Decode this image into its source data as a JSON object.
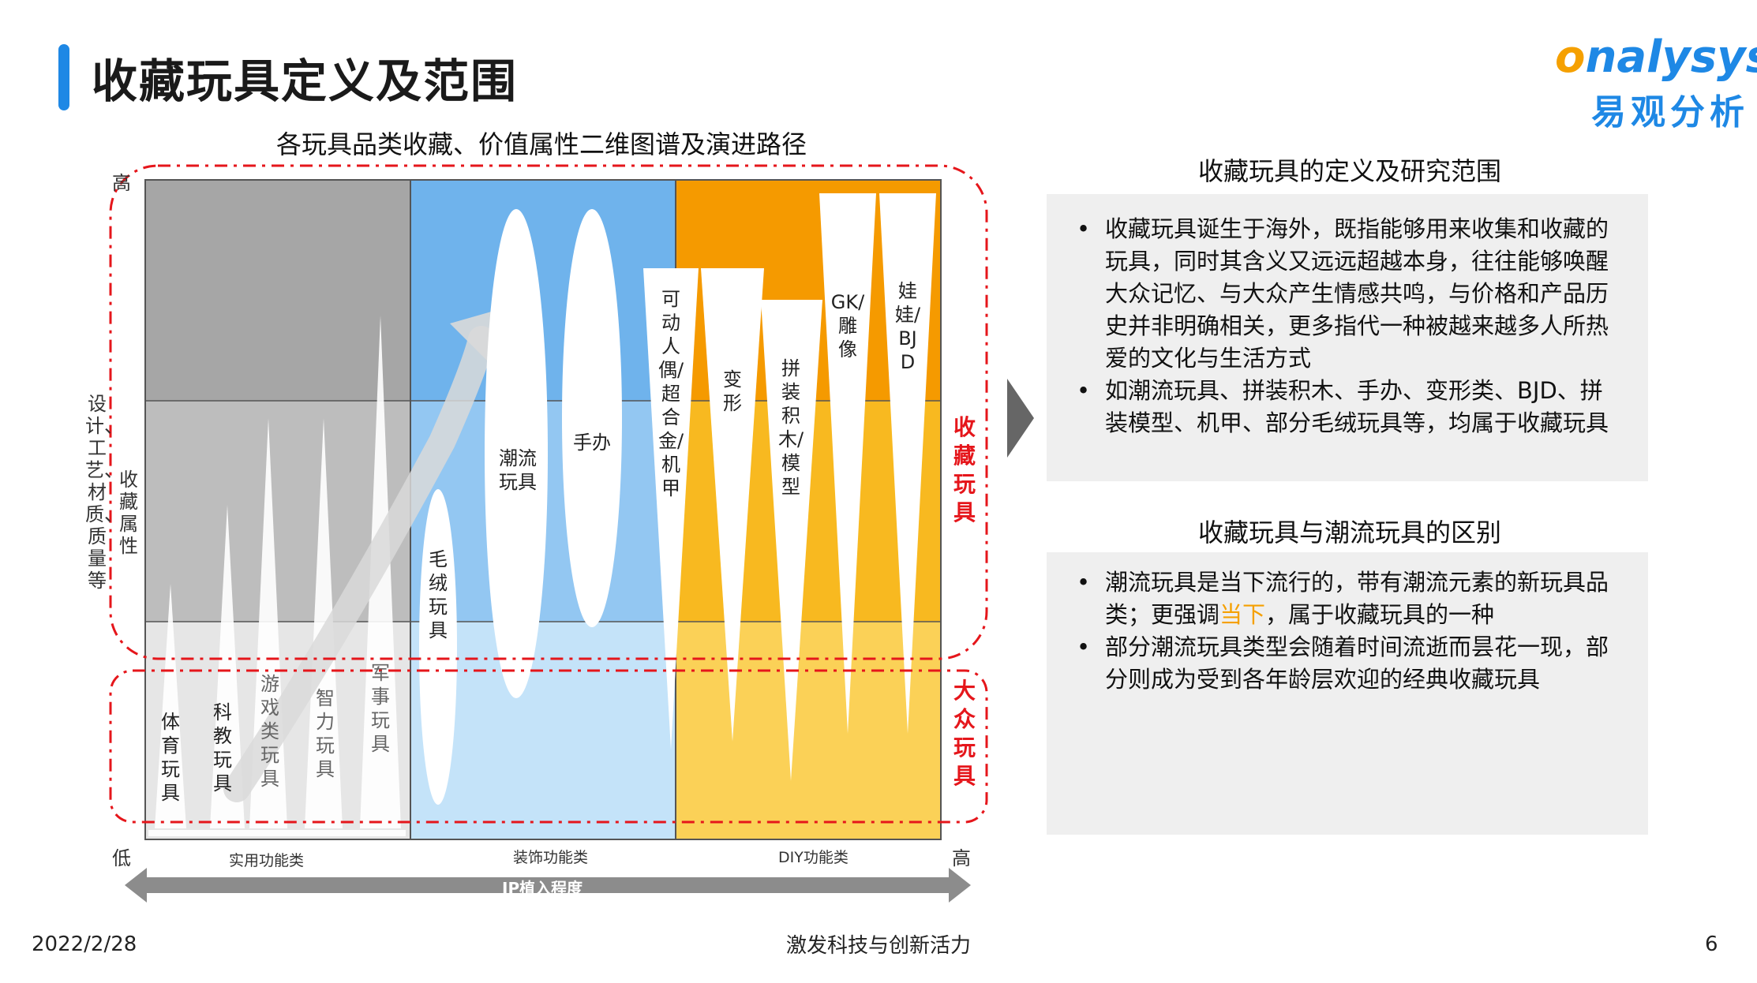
{
  "header": {
    "title": "收藏玩具定义及范围",
    "logo_en_o": "o",
    "logo_en_rest": "nalysys",
    "logo_cn": "易观分析"
  },
  "chart": {
    "title": "各玩具品类收藏、价值属性二维图谱及演进路径",
    "y_axis": {
      "high": "高",
      "low": "低",
      "label_left": "设计、工艺、材质、质量等",
      "label_right": "收藏属性"
    },
    "x_axis": {
      "high": "高",
      "label": "IP植入程度",
      "categories": [
        "实用功能类",
        "装饰功能类",
        "DIY功能类"
      ]
    },
    "zone_labels": {
      "collectible": "收藏玩具",
      "mass": "大众玩具"
    },
    "items": [
      {
        "key": "sports",
        "label": "体育玩具"
      },
      {
        "key": "science",
        "label": "科教玩具"
      },
      {
        "key": "game",
        "label": "游戏类玩具"
      },
      {
        "key": "puzzle",
        "label": "智力玩具"
      },
      {
        "key": "military",
        "label": "军事玩具"
      },
      {
        "key": "plush",
        "label": "毛绒玩具"
      },
      {
        "key": "trendy",
        "label": "潮流玩具"
      },
      {
        "key": "figure",
        "label": "手办"
      },
      {
        "key": "action",
        "label": "可动人偶/超合金/机甲"
      },
      {
        "key": "transform",
        "label": "变形"
      },
      {
        "key": "model",
        "label": "拼装积木/模型"
      },
      {
        "key": "gk",
        "label": "GK/雕像"
      },
      {
        "key": "bjd",
        "label": "娃娃/BJD"
      }
    ],
    "colors": {
      "gray_top": "#a6a6a6",
      "gray_mid": "#bdbdbd",
      "gray_bot": "#dedede",
      "blue_top": "#6fb3ec",
      "blue_mid": "#93c7f2",
      "blue_bot": "#c4e3f9",
      "orange_top": "#f59a00",
      "orange_mid": "#f8b920",
      "orange_bot": "#fbd157",
      "red": "#e5161b"
    }
  },
  "panel1": {
    "heading": "收藏玩具的定义及研究范围",
    "bullets": [
      "收藏玩具诞生于海外，既指能够用来收集和收藏的玩具，同时其含义又远远超越本身，往往能够唤醒大众记忆、与大众产生情感共鸣，与价格和产品历史并非明确相关，更多指代一种被越来越多人所热爱的文化与生活方式",
      "如潮流玩具、拼装积木、手办、变形类、BJD、拼装模型、机甲、部分毛绒玩具等，均属于收藏玩具"
    ]
  },
  "panel2": {
    "heading": "收藏玩具与潮流玩具的区别",
    "b1_pre": "潮流玩具是当下流行的，带有潮流元素的新玩具品类；更强调",
    "b1_hl": "当下",
    "b1_post": "，属于收藏玩具的一种",
    "b2": "部分潮流玩具类型会随着时间流逝而昙花一现，部分则成为受到各年龄层欢迎的经典收藏玩具"
  },
  "footer": {
    "date": "2022/2/28",
    "slogan": "激发科技与创新活力",
    "page": "6"
  }
}
